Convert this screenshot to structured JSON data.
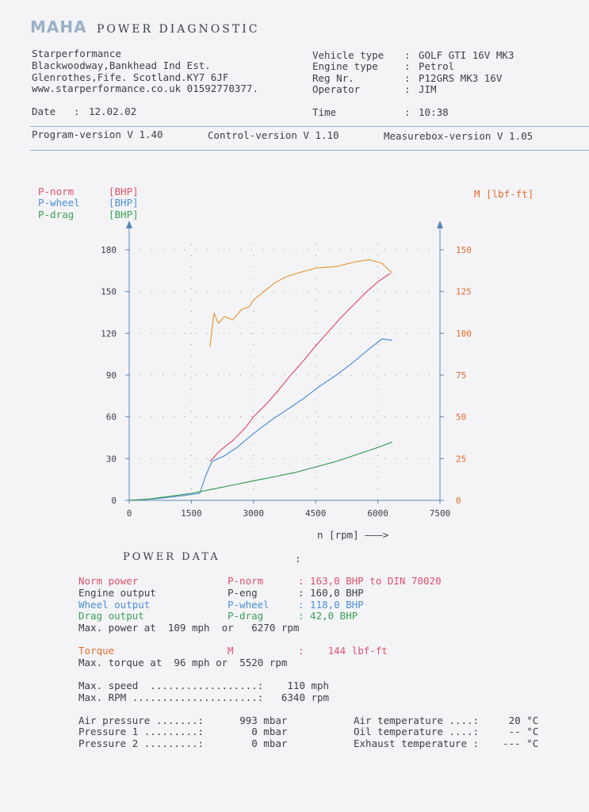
{
  "header": {
    "logo": "MAHA",
    "title": "POWER DIAGNOSTIC"
  },
  "company": {
    "name": "Starperformance",
    "address1": "Blackwoodway,Bankhead Ind Est.",
    "address2": "Glenrothes,Fife. Scotland.KY7 6JF",
    "web_phone": "www.starperformance.co.uk 01592770377."
  },
  "vehicle": {
    "type_label": "Vehicle type",
    "type_value": "GOLF GTI 16V MK3",
    "engine_label": "Engine type",
    "engine_value": "Petrol",
    "reg_label": "Reg Nr.",
    "reg_value": "P12GRS MK3 16V",
    "operator_label": "Operator",
    "operator_value": "JIM"
  },
  "date": {
    "label": "Date",
    "value": "12.02.02"
  },
  "time": {
    "label": "Time",
    "value": "10:38"
  },
  "versions": {
    "program": "Program-version V 1.40",
    "control": "Control-version V 1.10",
    "measurebox": "Measurebox-version V 1.05"
  },
  "legend": [
    {
      "name": "P-norm",
      "unit": "[BHP]",
      "color": "#e0506a"
    },
    {
      "name": "P-wheel",
      "unit": "[BHP]",
      "color": "#4d8fd8"
    },
    {
      "name": "P-drag",
      "unit": "[BHP]",
      "color": "#3aa057"
    }
  ],
  "right_axis_label": "M [lbf-ft]",
  "x_axis_label": "n [rpm] ———>",
  "chart_data": {
    "type": "line",
    "x_ticks": [
      0,
      1500,
      3000,
      4500,
      6000,
      7500
    ],
    "y_left_ticks": [
      0,
      30,
      60,
      90,
      120,
      150,
      180
    ],
    "y_right_ticks": [
      0,
      25,
      50,
      75,
      100,
      125,
      150
    ],
    "xlim": [
      0,
      7500
    ],
    "ylim_left": [
      0,
      180
    ],
    "ylim_right": [
      0,
      150
    ],
    "grid": true,
    "series": [
      {
        "name": "P-norm",
        "axis": "left",
        "color": "#e0506a",
        "x": [
          1950,
          2200,
          2500,
          2800,
          3000,
          3300,
          3600,
          3900,
          4200,
          4500,
          4800,
          5100,
          5400,
          5700,
          6000,
          6300
        ],
        "y": [
          28,
          36,
          43,
          52,
          60,
          69,
          79,
          90,
          100,
          111,
          121,
          131,
          140,
          149,
          157,
          163
        ]
      },
      {
        "name": "P-wheel",
        "axis": "left",
        "color": "#4d8fd8",
        "x": [
          0,
          600,
          1200,
          1700,
          1850,
          2000,
          2300,
          2600,
          3000,
          3400,
          3800,
          4200,
          4600,
          5000,
          5400,
          5800,
          6100,
          6350
        ],
        "y": [
          0,
          1,
          3,
          5,
          18,
          28,
          32,
          38,
          48,
          57,
          65,
          73,
          82,
          90,
          99,
          109,
          116,
          115
        ]
      },
      {
        "name": "P-drag",
        "axis": "left",
        "color": "#3aa057",
        "x": [
          0,
          500,
          1000,
          1500,
          2000,
          2500,
          3000,
          3500,
          4000,
          4500,
          5000,
          5500,
          6000,
          6350
        ],
        "y": [
          0,
          1,
          3,
          5,
          8,
          11,
          14,
          17,
          20,
          24,
          28,
          33,
          38,
          42
        ]
      },
      {
        "name": "M",
        "axis": "right",
        "color": "#e89a3a",
        "x": [
          1950,
          2000,
          2050,
          2150,
          2300,
          2500,
          2700,
          2900,
          3000,
          3200,
          3500,
          3800,
          4200,
          4500,
          5000,
          5500,
          5800,
          6100,
          6350
        ],
        "y": [
          92,
          103,
          112,
          106,
          110,
          108,
          114,
          116,
          120,
          124,
          130,
          134,
          137,
          139,
          140,
          143,
          144,
          142,
          136
        ]
      }
    ]
  },
  "power_data": {
    "title": "POWER DATA",
    "colon": ":",
    "rows": [
      {
        "label": "Norm power",
        "symbol": "P-norm",
        "value": ": 163,0 BHP to DIN 70020",
        "color": "#e0506a"
      },
      {
        "label": "Engine output",
        "symbol": "P-eng",
        "value": ": 160,0 BHP",
        "color": "#3b3f48"
      },
      {
        "label": "Wheel output",
        "symbol": "P-wheel",
        "value": ": 118,0 BHP",
        "color": "#4d8fd8"
      },
      {
        "label": "Drag output",
        "symbol": "P-drag",
        "value": ": 42,0 BHP",
        "color": "#3aa057"
      }
    ],
    "max_power": "Max. power at  109 mph  or   6270 rpm",
    "torque": {
      "label": "Torque",
      "symbol": "M",
      "value": ":    144 lbf-ft"
    },
    "max_torque": "Max. torque at  96 mph or  5520 rpm",
    "max_speed": "Max. speed  ..................:    110 mph",
    "max_rpm": "Max. RPM .....................:   6340 rpm",
    "env": [
      {
        "left": "Air pressure .......:      993 mbar",
        "right": "Air temperature ....:     20 °C"
      },
      {
        "left": "Pressure 1 .........:        0 mbar",
        "right": "Oil temperature ....:     -- °C"
      },
      {
        "left": "Pressure 2 .........:        0 mbar",
        "right": "Exhaust temperature :    --- °C"
      }
    ]
  }
}
